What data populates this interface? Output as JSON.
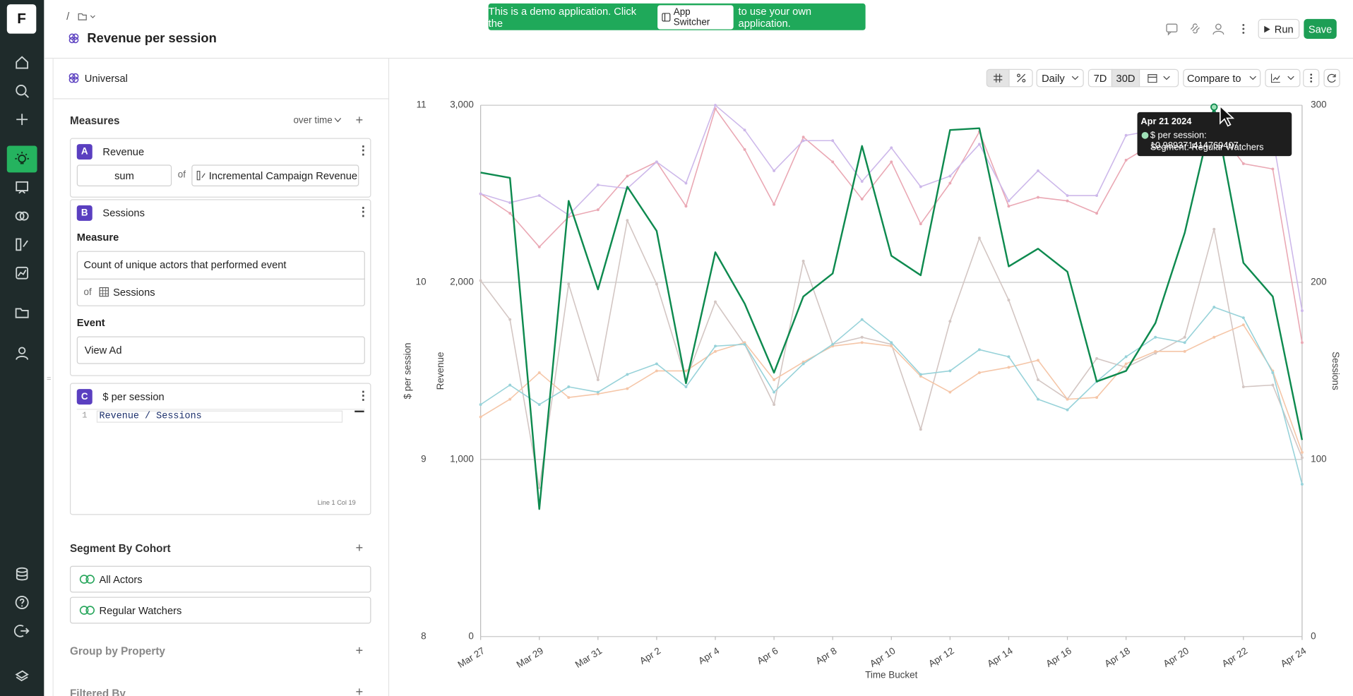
{
  "logo": "F",
  "header": {
    "breadcrumb": "/",
    "title": "Revenue per session",
    "banner": {
      "text_before": "This is a demo application. Click the",
      "button": "App Switcher",
      "text_after": "to use your own application."
    },
    "actions": {
      "run": "Run",
      "save": "Save"
    }
  },
  "panel": {
    "source": "Universal",
    "measures": {
      "title": "Measures",
      "mode": "over time",
      "items": [
        {
          "letter": "A",
          "name": "Revenue",
          "aggregation": "sum",
          "of": "of",
          "field": "Incremental Campaign Revenue"
        },
        {
          "letter": "B",
          "name": "Sessions",
          "measure_label": "Measure",
          "measure": "Count of unique actors that performed event",
          "of": "of",
          "field": "Sessions",
          "event_label": "Event",
          "event": "View Ad"
        },
        {
          "letter": "C",
          "name": "$ per session",
          "line_number": 1,
          "formula": "Revenue / Sessions",
          "status": "Line 1 Col 19"
        }
      ]
    },
    "segment": {
      "title": "Segment By Cohort",
      "cohorts": [
        "All Actors",
        "Regular Watchers"
      ]
    },
    "group_by": "Group by Property",
    "filtered_by": "Filtered By"
  },
  "toolbar": {
    "granularity": "Daily",
    "ranges": [
      "7D",
      "30D"
    ],
    "compare": "Compare to"
  },
  "chart_data": {
    "type": "line",
    "x_label": "Time Bucket",
    "y_label": "$ per session",
    "y2_label": "Revenue",
    "y3_label": "Sessions",
    "categories": [
      "Mar 27",
      null,
      "Mar 29",
      null,
      "Mar 31",
      null,
      "Apr 2",
      null,
      "Apr 4",
      null,
      "Apr 6",
      null,
      "Apr 8",
      null,
      "Apr 10",
      null,
      "Apr 12",
      null,
      "Apr 14",
      null,
      "Apr 16",
      null,
      "Apr 18",
      null,
      "Apr 20",
      null,
      "Apr 22",
      null,
      "Apr 24"
    ],
    "ylim": [
      8,
      11
    ],
    "yticks": [
      8,
      9,
      10,
      11
    ],
    "y2lim": [
      0,
      3000
    ],
    "y2ticks": [
      0,
      {
        "value": 1000,
        "label": "1,000"
      },
      {
        "value": 2000,
        "label": "2,000"
      },
      {
        "value": 3000,
        "label": "3,000"
      }
    ],
    "y3lim": [
      0,
      300
    ],
    "y3ticks": [
      0,
      100,
      200,
      300
    ],
    "grid": true,
    "series": [
      {
        "color": "#0e8a4f",
        "axis": "y",
        "values": [
          10.62,
          10.59,
          8.72,
          10.46,
          9.96,
          10.54,
          10.29,
          9.43,
          10.17,
          9.88,
          9.49,
          9.92,
          10.05,
          10.77,
          10.15,
          10.04,
          10.86,
          10.87,
          10.09,
          10.19,
          10.06,
          9.44,
          9.5,
          9.77,
          10.28,
          10.989371414769407,
          10.11,
          9.92,
          9.11
        ]
      },
      {
        "color": "#cdb8ea",
        "axis": "y2",
        "values": [
          2500,
          2450,
          2490,
          2380,
          2550,
          2530,
          2680,
          2560,
          3000,
          2860,
          2630,
          2800,
          2800,
          2570,
          2760,
          2540,
          2600,
          2780,
          2460,
          2630,
          2490,
          2490,
          2830,
          2860,
          2870,
          2960,
          2900,
          2820,
          1840
        ]
      },
      {
        "color": "#eaa8b4",
        "axis": "y2",
        "values": [
          2500,
          2390,
          2200,
          2370,
          2410,
          2600,
          2680,
          2430,
          2980,
          2750,
          2440,
          2820,
          2680,
          2470,
          2680,
          2330,
          2560,
          2850,
          2430,
          2480,
          2460,
          2390,
          2690,
          2790,
          2770,
          2890,
          2670,
          2640,
          1660
        ]
      },
      {
        "color": "#97d2d9",
        "axis": "y3",
        "values": [
          131,
          142,
          131,
          141,
          138,
          148,
          154,
          141,
          164,
          165,
          138,
          154,
          165,
          179,
          166,
          148,
          150,
          162,
          158,
          134,
          128,
          144,
          158,
          169,
          166,
          186,
          180,
          149,
          86
        ]
      },
      {
        "color": "#f5c6a8",
        "axis": "y3",
        "values": [
          124,
          134,
          149,
          135,
          137,
          140,
          150,
          150,
          161,
          166,
          145,
          155,
          164,
          166,
          164,
          147,
          138,
          149,
          152,
          156,
          134,
          135,
          154,
          161,
          161,
          169,
          176,
          150,
          104
        ]
      },
      {
        "color": "#d3c6c3",
        "axis": "y3",
        "values": [
          201,
          179,
          84,
          199,
          145,
          235,
          199,
          145,
          189,
          165,
          131,
          212,
          165,
          169,
          165,
          117,
          178,
          225,
          190,
          145,
          134,
          157,
          152,
          160,
          169,
          230,
          141,
          142,
          101
        ]
      }
    ],
    "tooltip": {
      "date": "Apr 21 2024",
      "text": "$ per session: 10.989371414769407",
      "segment": "Segment: Regular Watchers",
      "index": 25
    }
  }
}
